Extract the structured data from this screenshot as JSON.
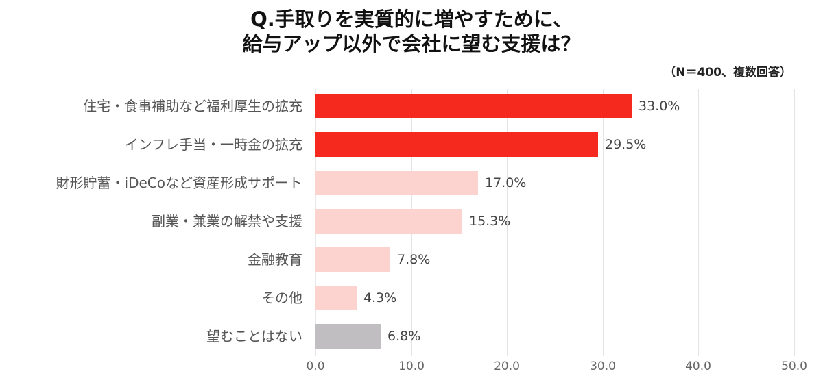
{
  "title": {
    "line1": "Q.手取りを実質的に増やすために、",
    "line2": "給与アップ以外で会社に望む支援は？"
  },
  "note": "（N＝400、複数回答）",
  "colors": {
    "highlight": "#f5291e",
    "normal": "#fdd3cf",
    "none": "#c1bec1",
    "grid": "#e3e3e8"
  },
  "chart_data": {
    "type": "bar",
    "orientation": "horizontal",
    "title": "Q.手取りを実質的に増やすために、給与アップ以外で会社に望む支援は？",
    "subtitle": "（N＝400、複数回答）",
    "xlabel": "",
    "ylabel": "",
    "xlim": [
      0,
      50
    ],
    "x_ticks": [
      "0.0",
      "10.0",
      "20.0",
      "30.0",
      "40.0",
      "50.0"
    ],
    "grid": true,
    "categories": [
      "住宅・食事補助など福利厚生の拡充",
      "インフレ手当・一時金の拡充",
      "財形貯蓄・iDeCoなど資産形成サポート",
      "副業・兼業の解禁や支援",
      "金融教育",
      "その他",
      "望むことはない"
    ],
    "values": [
      33.0,
      29.5,
      17.0,
      15.3,
      7.8,
      4.3,
      6.8
    ],
    "value_labels": [
      "33.0%",
      "29.5%",
      "17.0%",
      "15.3%",
      "7.8%",
      "4.3%",
      "6.8%"
    ],
    "bar_colors": [
      "#f5291e",
      "#f5291e",
      "#fdd3cf",
      "#fdd3cf",
      "#fdd3cf",
      "#fdd3cf",
      "#c1bec1"
    ]
  }
}
